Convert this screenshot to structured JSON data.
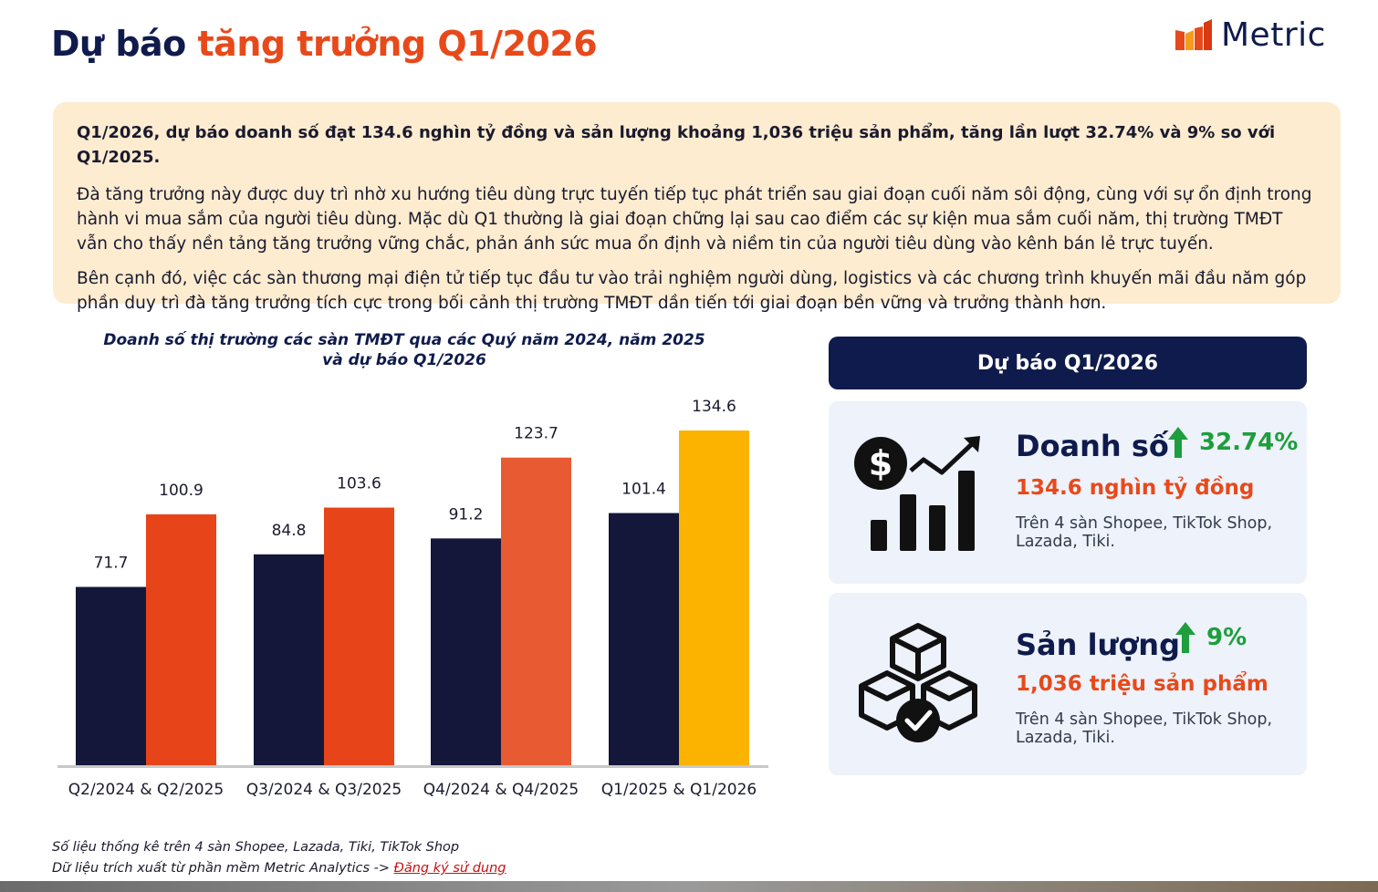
{
  "page": {
    "title_part1": "Dự báo",
    "title_part2": "tăng trưởng Q1/2026",
    "logo_text": "Metric"
  },
  "summary": {
    "lead": "Q1/2026, dự báo doanh số đạt 134.6 nghìn tỷ đồng và sản lượng khoảng 1,036 triệu sản phẩm, tăng lần lượt 32.74% và 9% so với Q1/2025.",
    "para1": "Đà tăng trưởng này được duy trì nhờ xu hướng tiêu dùng trực tuyến tiếp tục phát triển sau giai đoạn cuối năm sôi động, cùng với sự ổn định trong hành vi mua sắm của người tiêu dùng. Mặc dù Q1 thường là giai đoạn chững lại sau cao điểm các sự kiện mua sắm cuối năm, thị trường TMĐT vẫn cho thấy nền tảng tăng trưởng vững chắc, phản ánh sức mua ổn định và niềm tin của người tiêu dùng vào kênh bán lẻ trực tuyến.",
    "para2": "Bên cạnh đó, việc các sàn thương mại điện tử tiếp tục đầu tư vào trải nghiệm người dùng, logistics và các chương trình khuyến mãi đầu năm góp phần duy trì đà tăng trưởng tích cực trong bối cảnh thị trường TMĐT dần tiến tới giai đoạn bền vững và trưởng thành hơn."
  },
  "chart_data": {
    "type": "bar",
    "title_line1": "Doanh số thị trường các sàn TMĐT qua các Quý năm 2024, năm 2025",
    "title_line2": "và dự báo Q1/2026",
    "categories": [
      "Q2/2024 & Q2/2025",
      "Q3/2024 & Q3/2025",
      "Q4/2024 & Q4/2025",
      "Q1/2025 & Q1/2026"
    ],
    "series": [
      {
        "values": [
          71.7,
          84.8,
          91.2,
          101.4
        ],
        "color": "#14173a"
      },
      {
        "values": [
          100.9,
          103.6,
          123.7,
          134.6
        ],
        "color": "#e8441a"
      }
    ],
    "highlight": {
      "category_index": 3,
      "series_index": 1,
      "color": "#fbb300"
    },
    "ylim": [
      0,
      134.6
    ],
    "grid": false,
    "legend": "none"
  },
  "forecast": {
    "header": "Dự báo Q1/2026",
    "revenue": {
      "label": "Doanh số",
      "growth": "32.74%",
      "value": "134.6 nghìn tỷ đồng",
      "desc": "Trên 4 sàn Shopee, TikTok Shop, Lazada, Tiki."
    },
    "volume": {
      "label": "Sản lượng",
      "growth": "9%",
      "value": "1,036 triệu sản phẩm",
      "desc": "Trên 4 sàn Shopee, TikTok Shop, Lazada, Tiki."
    },
    "growth_color": "#1e9e3c"
  },
  "footnote": {
    "line1": "Số liệu thống kê trên 4 sàn Shopee, Lazada, Tiki, TikTok Shop",
    "line2_prefix": "Dữ liệu trích xuất từ phần mềm Metric Analytics -> ",
    "link": "Đăng ký sử dụng"
  },
  "icons": {
    "logo": "metric-logo-bars-icon",
    "revenue": "dollar-chart-growth-icon",
    "volume": "boxes-checkmark-icon",
    "arrow": "arrow-up-icon"
  }
}
